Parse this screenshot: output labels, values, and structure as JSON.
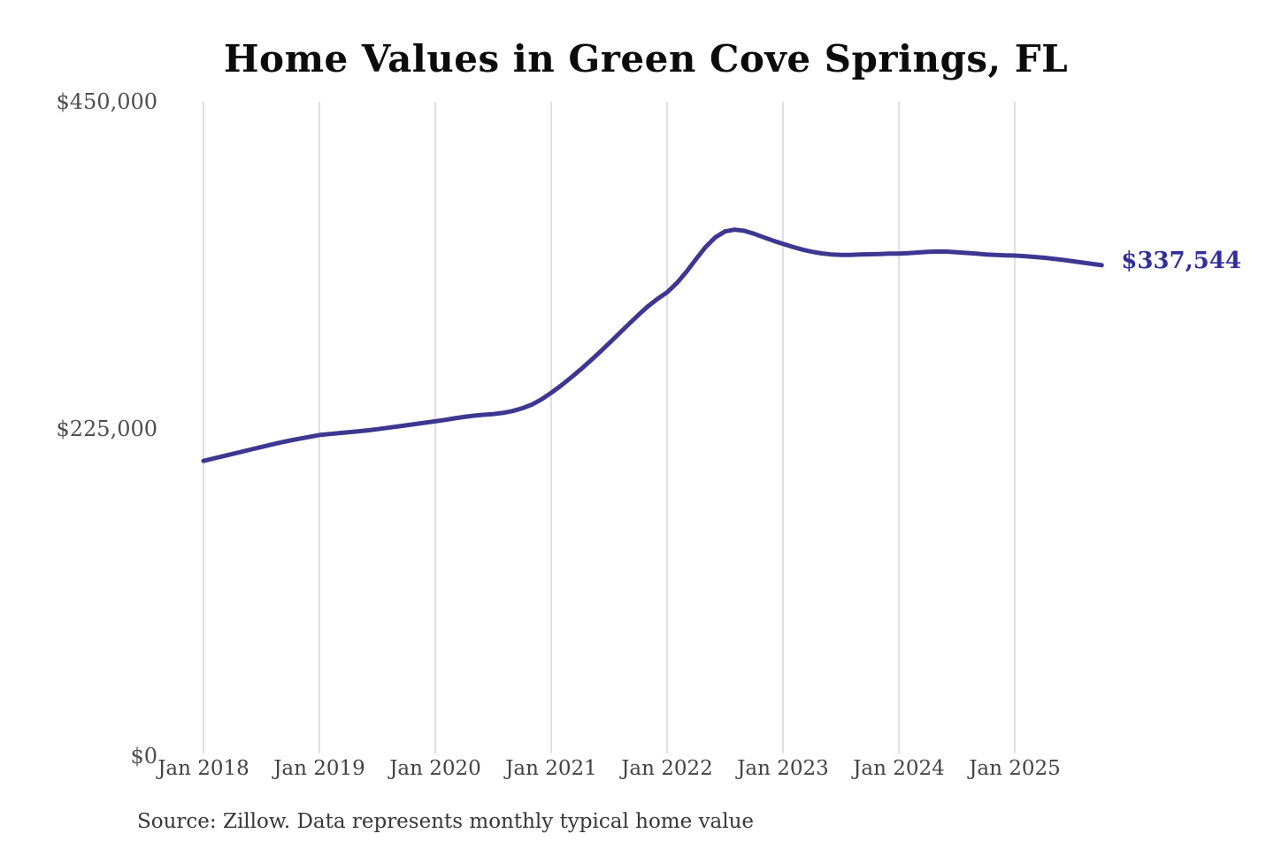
{
  "chart": {
    "title": "Home Values in Green Cove Springs, FL",
    "source_note": "Source: Zillow. Data represents monthly typical home value",
    "end_label": "$337,544",
    "colors": {
      "line": "#3d3791",
      "end_label": "#322e9a",
      "grid": "#cbcbcb",
      "y_tick_text": "#4e4e4e",
      "x_tick_text": "#434343",
      "title_text": "#0c0c0c",
      "source_text": "#373737",
      "background": "#ffffff"
    }
  },
  "chart_data": {
    "type": "line",
    "title": "Home Values in Green Cove Springs, FL",
    "xlabel": "",
    "ylabel": "",
    "ylim": [
      0,
      450000
    ],
    "y_ticks": [
      0,
      225000,
      450000
    ],
    "y_tick_labels": [
      "$0",
      "$225,000",
      "$450,000"
    ],
    "x_tick_labels": [
      "Jan 2018",
      "Jan 2019",
      "Jan 2020",
      "Jan 2021",
      "Jan 2022",
      "Jan 2023",
      "Jan 2024",
      "Jan 2025"
    ],
    "x_start": "Jan 2018",
    "x_end": "Oct 2025",
    "frequency": "monthly",
    "grid": "vertical-only",
    "legend_position": "none",
    "last_value": 337544,
    "last_value_label": "$337,544",
    "series": [
      {
        "name": "Typical home value",
        "values": [
          203000,
          204600,
          206200,
          207800,
          209400,
          211000,
          212600,
          214200,
          215700,
          217100,
          218400,
          219600,
          220800,
          221500,
          222100,
          222700,
          223300,
          224000,
          224800,
          225700,
          226600,
          227500,
          228400,
          229300,
          230200,
          231200,
          232300,
          233300,
          234100,
          234700,
          235200,
          236000,
          237300,
          239200,
          241700,
          245300,
          249800,
          254700,
          260000,
          265600,
          271500,
          277600,
          283900,
          290300,
          296800,
          303200,
          309200,
          314400,
          318900,
          325200,
          333000,
          341800,
          350200,
          356800,
          360800,
          362000,
          361200,
          359200,
          356800,
          354400,
          352300,
          350200,
          348300,
          346800,
          345700,
          345000,
          344700,
          344700,
          344900,
          345100,
          345300,
          345500,
          345600,
          345900,
          346300,
          346800,
          347000,
          346900,
          346500,
          346000,
          345500,
          345000,
          344700,
          344400,
          344200,
          343800,
          343300,
          342700,
          342000,
          341200,
          340300,
          339400,
          338500,
          337544
        ]
      }
    ]
  }
}
